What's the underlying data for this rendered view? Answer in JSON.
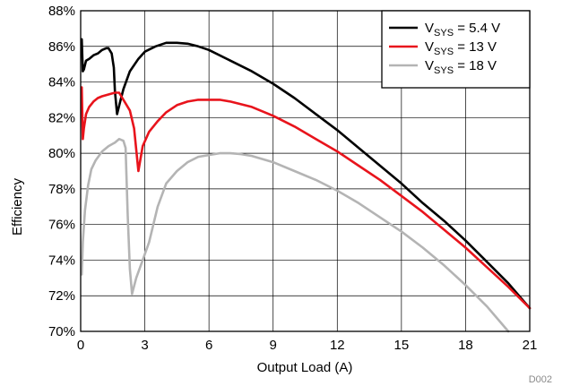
{
  "chart_data": {
    "type": "line",
    "xlabel": "Output Load (A)",
    "ylabel": "Efficiency",
    "xlim": [
      0,
      21
    ],
    "ylim": [
      70,
      88
    ],
    "x_ticks": [
      0,
      3,
      6,
      9,
      12,
      15,
      18,
      21
    ],
    "y_ticks": [
      70,
      72,
      74,
      76,
      78,
      80,
      82,
      84,
      86,
      88
    ],
    "x_tick_labels": [
      "0",
      "3",
      "6",
      "9",
      "12",
      "15",
      "18",
      "21"
    ],
    "y_tick_labels": [
      "70%",
      "72%",
      "74%",
      "76%",
      "78%",
      "80%",
      "82%",
      "84%",
      "86%",
      "88%"
    ],
    "grid": true,
    "legend_position": "top-right",
    "footnote": "D002",
    "series": [
      {
        "name_main": "V",
        "name_sub": "SYS",
        "name_rest": " = 5.4 V",
        "color": "#000000",
        "x": [
          0.05,
          0.1,
          0.15,
          0.25,
          0.4,
          0.6,
          0.8,
          1.0,
          1.2,
          1.3,
          1.45,
          1.55,
          1.6,
          1.7,
          1.85,
          2.0,
          2.3,
          2.7,
          3.0,
          3.5,
          4.0,
          4.5,
          5.0,
          5.5,
          6.0,
          7.0,
          8.0,
          9.0,
          10.0,
          11.0,
          12.0,
          13.0,
          14.0,
          15.0,
          16.0,
          17.0,
          18.0,
          19.0,
          20.0,
          21.0
        ],
        "y": [
          86.4,
          84.6,
          84.7,
          85.2,
          85.3,
          85.5,
          85.6,
          85.8,
          85.9,
          85.9,
          85.6,
          84.8,
          83.5,
          82.2,
          82.9,
          83.6,
          84.6,
          85.3,
          85.7,
          86.0,
          86.2,
          86.2,
          86.15,
          86.0,
          85.8,
          85.2,
          84.6,
          83.9,
          83.1,
          82.2,
          81.3,
          80.3,
          79.3,
          78.3,
          77.2,
          76.2,
          75.1,
          73.9,
          72.7,
          71.3
        ]
      },
      {
        "name_main": "V",
        "name_sub": "SYS",
        "name_rest": " = 13 V",
        "color": "#e8141c",
        "x": [
          0.05,
          0.1,
          0.15,
          0.25,
          0.4,
          0.6,
          0.8,
          1.0,
          1.3,
          1.6,
          1.8,
          1.9,
          2.1,
          2.3,
          2.5,
          2.7,
          2.9,
          3.2,
          3.6,
          4.0,
          4.5,
          5.0,
          5.5,
          6.0,
          6.5,
          7.0,
          8.0,
          9.0,
          10.0,
          11.0,
          12.0,
          13.0,
          14.0,
          15.0,
          16.0,
          17.0,
          18.0,
          19.0,
          20.0,
          21.0
        ],
        "y": [
          83.7,
          80.8,
          81.4,
          82.2,
          82.6,
          82.9,
          83.1,
          83.2,
          83.3,
          83.4,
          83.4,
          83.2,
          82.8,
          82.4,
          81.4,
          79.0,
          80.4,
          81.2,
          81.8,
          82.3,
          82.7,
          82.9,
          83.0,
          83.0,
          83.0,
          82.9,
          82.6,
          82.1,
          81.5,
          80.8,
          80.1,
          79.3,
          78.5,
          77.6,
          76.7,
          75.7,
          74.7,
          73.6,
          72.5,
          71.3
        ]
      },
      {
        "name_main": "V",
        "name_sub": "SYS",
        "name_rest": " = 18 V",
        "color": "#b4b4b4",
        "x": [
          0.05,
          0.1,
          0.2,
          0.35,
          0.5,
          0.7,
          1.0,
          1.3,
          1.6,
          1.8,
          2.0,
          2.1,
          2.2,
          2.3,
          2.4,
          2.6,
          2.9,
          3.2,
          3.6,
          4.0,
          4.5,
          5.0,
          5.5,
          6.0,
          6.5,
          7.0,
          7.5,
          8.0,
          9.0,
          10.0,
          11.0,
          12.0,
          13.0,
          14.0,
          15.0,
          16.0,
          17.0,
          18.0,
          19.0,
          20.0
        ],
        "y": [
          73.2,
          75.0,
          76.8,
          78.2,
          79.1,
          79.6,
          80.1,
          80.4,
          80.6,
          80.8,
          80.7,
          80.3,
          76.5,
          73.5,
          72.1,
          73.0,
          74.0,
          75.0,
          77.0,
          78.3,
          79.0,
          79.5,
          79.8,
          79.9,
          80.0,
          80.0,
          79.95,
          79.85,
          79.5,
          79.0,
          78.5,
          77.9,
          77.2,
          76.4,
          75.6,
          74.7,
          73.7,
          72.6,
          71.4,
          70.0
        ]
      }
    ]
  }
}
